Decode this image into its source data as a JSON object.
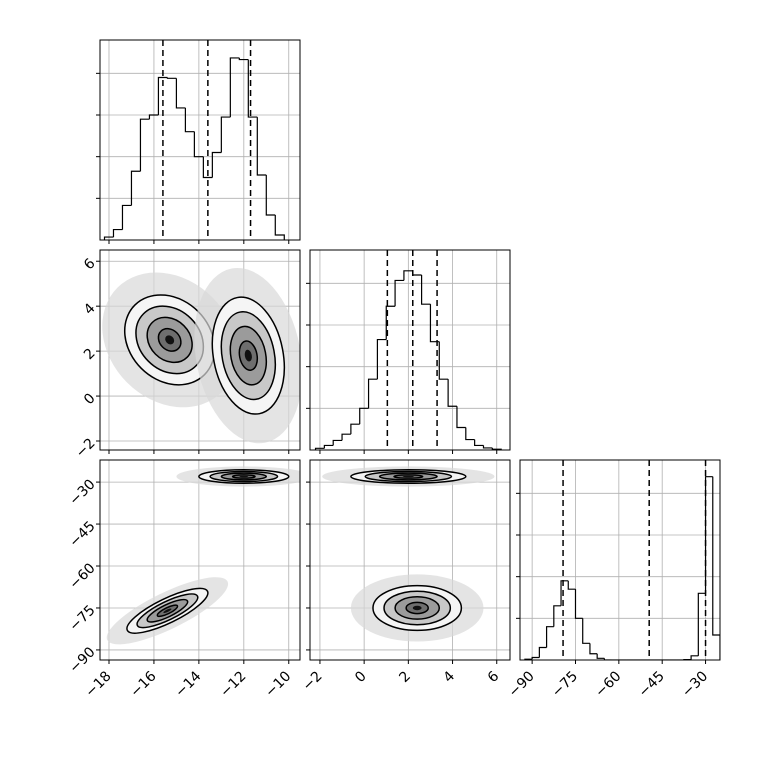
{
  "chart_data": [
    {
      "type": "histogram",
      "bins": [
        -18.2,
        -17.8,
        -17.4,
        -17.0,
        -16.6,
        -16.2,
        -15.8,
        -15.4,
        -15.0,
        -14.6,
        -14.2,
        -13.8,
        -13.4,
        -13.0,
        -12.6,
        -12.2,
        -11.8,
        -11.4,
        -11.0,
        -10.6,
        -10.2
      ],
      "counts": [
        70,
        250,
        830,
        1650,
        2900,
        3000,
        3900,
        3880,
        3170,
        2600,
        2000,
        1500,
        2100,
        2950,
        4370,
        4330,
        2950,
        1560,
        600,
        120
      ],
      "quantiles": [
        -15.6,
        -13.6,
        -11.7
      ],
      "xlim": [
        -18.4,
        -9.5
      ],
      "xticks": [
        {
          "value": -18,
          "label": "−18"
        },
        {
          "value": -16,
          "label": "−16"
        },
        {
          "value": -14,
          "label": "−14"
        },
        {
          "value": -12,
          "label": "−12"
        },
        {
          "value": -10,
          "label": "−10"
        }
      ],
      "ylim": [
        0,
        4800
      ],
      "yticks": [
        1000,
        2000,
        3000,
        4000
      ],
      "show_xtick_labels": false,
      "show_ytick_labels": false,
      "color": "#000000",
      "grid": true
    },
    {
      "type": "density2d",
      "modes": [
        {
          "x": -15.3,
          "y": 2.5,
          "sx": 1.0,
          "sy": 1.0,
          "rho": -0.2
        },
        {
          "x": -11.8,
          "y": 1.8,
          "sx": 0.8,
          "sy": 1.3,
          "rho": -0.2
        }
      ],
      "contour_levels": [
        0.5,
        1,
        1.5,
        2
      ],
      "xlim": [
        -18.4,
        -9.5
      ],
      "xticks": [
        {
          "value": -18,
          "label": "−18"
        },
        {
          "value": -16,
          "label": "−16"
        },
        {
          "value": -14,
          "label": "−14"
        },
        {
          "value": -12,
          "label": "−12"
        },
        {
          "value": -10,
          "label": "−10"
        }
      ],
      "ylim": [
        -2.4,
        6.5
      ],
      "yticks": [
        {
          "value": -2,
          "label": "−2"
        },
        0,
        2,
        4,
        6
      ],
      "show_xtick_labels": false,
      "show_ytick_labels": true,
      "color": "#000000",
      "grid": true
    },
    {
      "type": "histogram",
      "bins": [
        -2.2,
        -1.8,
        -1.4,
        -1.0,
        -0.6,
        -0.2,
        0.2,
        0.6,
        1.0,
        1.4,
        1.8,
        2.2,
        2.6,
        3.0,
        3.4,
        3.8,
        4.2,
        4.6,
        5.0,
        5.4,
        5.8,
        6.2
      ],
      "counts": [
        40,
        110,
        230,
        380,
        620,
        1000,
        1700,
        2650,
        3450,
        4070,
        4300,
        4200,
        3500,
        2600,
        1700,
        1050,
        540,
        250,
        110,
        50,
        20
      ],
      "quantiles": [
        1.05,
        2.2,
        3.3
      ],
      "xlim": [
        -2.45,
        6.6
      ],
      "xticks": [
        {
          "value": -2,
          "label": "−2"
        },
        0,
        2,
        4,
        6
      ],
      "ylim": [
        0,
        4800
      ],
      "yticks": [
        1000,
        2000,
        3000,
        4000
      ],
      "show_xtick_labels": false,
      "show_ytick_labels": false,
      "color": "#000000",
      "grid": true
    },
    {
      "type": "density2d",
      "modes": [
        {
          "x": -15.4,
          "y": -76,
          "sx": 0.9,
          "sy": 4,
          "rho": 0.8
        },
        {
          "x": -12,
          "y": -28,
          "sx": 1.0,
          "sy": 1.2,
          "rho": 0
        }
      ],
      "contour_levels": [
        0.5,
        1,
        1.5,
        2
      ],
      "xlim": [
        -18.4,
        -9.5
      ],
      "xticks": [
        {
          "value": -18,
          "label": "−18"
        },
        {
          "value": -16,
          "label": "−16"
        },
        {
          "value": -14,
          "label": "−14"
        },
        {
          "value": -12,
          "label": "−12"
        },
        {
          "value": -10,
          "label": "−10"
        }
      ],
      "ylim": [
        -93.6,
        -22.1
      ],
      "yticks": [
        {
          "value": -90,
          "label": "−90"
        },
        {
          "value": -75,
          "label": "−75"
        },
        {
          "value": -60,
          "label": "−60"
        },
        {
          "value": -45,
          "label": "−45"
        },
        {
          "value": -30,
          "label": "−30"
        }
      ],
      "show_xtick_labels": true,
      "show_ytick_labels": true,
      "color": "#000000",
      "grid": true
    },
    {
      "type": "density2d",
      "modes": [
        {
          "x": 2,
          "y": -28,
          "sx": 1.3,
          "sy": 1.2,
          "rho": 0
        },
        {
          "x": 2.4,
          "y": -75,
          "sx": 1.0,
          "sy": 4,
          "rho": 0
        }
      ],
      "contour_levels": [
        0.5,
        1,
        1.5,
        2
      ],
      "xlim": [
        -2.45,
        6.6
      ],
      "xticks": [
        {
          "value": -2,
          "label": "−2"
        },
        0,
        2,
        4,
        6
      ],
      "ylim": [
        -93.6,
        -22.1
      ],
      "yticks": [
        {
          "value": -90,
          "label": "−90"
        },
        {
          "value": -75,
          "label": "−75"
        },
        {
          "value": -60,
          "label": "−60"
        },
        {
          "value": -45,
          "label": "−45"
        },
        {
          "value": -30,
          "label": "−30"
        }
      ],
      "show_xtick_labels": true,
      "show_ytick_labels": false,
      "color": "#000000",
      "grid": true
    },
    {
      "type": "histogram",
      "bins": [
        -92.5,
        -90,
        -87.5,
        -85,
        -82.5,
        -80,
        -77.5,
        -75,
        -72.5,
        -70,
        -67.5,
        -65,
        -62.5,
        -60,
        -57.5,
        -55,
        -52.5,
        -50,
        -47.5,
        -45,
        -42.5,
        -40,
        -37.5,
        -35,
        -32.5,
        -30,
        -27.5,
        -25
      ],
      "counts": [
        20,
        60,
        300,
        800,
        1300,
        1900,
        1700,
        1000,
        400,
        150,
        40,
        0,
        0,
        0,
        0,
        0,
        0,
        0,
        0,
        0,
        0,
        0,
        10,
        100,
        1600,
        4400,
        600
      ],
      "quantiles": [
        -79.3,
        -49.5,
        -30
      ],
      "xlim": [
        -94.2,
        -25
      ],
      "xticks": [
        {
          "value": -90,
          "label": "−90"
        },
        {
          "value": -75,
          "label": "−75"
        },
        {
          "value": -60,
          "label": "−60"
        },
        {
          "value": -45,
          "label": "−45"
        },
        {
          "value": -30,
          "label": "−30"
        }
      ],
      "ylim": [
        0,
        4800
      ],
      "yticks": [
        1000,
        2000,
        3000,
        4000
      ],
      "show_xtick_labels": true,
      "show_ytick_labels": false,
      "color": "#000000",
      "grid": true
    }
  ]
}
